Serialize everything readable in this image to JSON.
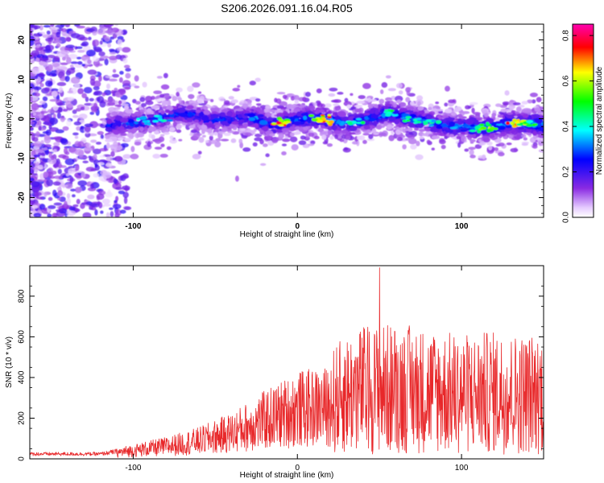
{
  "title": "S206.2026.091.16.04.R05",
  "chart_data": [
    {
      "type": "heatmap",
      "name": "spectrogram",
      "xlabel": "Height of straight line (km)",
      "ylabel": "Frequency (Hz)",
      "xlim": [
        -163,
        150
      ],
      "ylim": [
        -25,
        24
      ],
      "xticks": [
        -100,
        0,
        100
      ],
      "yticks": [
        -20,
        -10,
        0,
        10,
        20
      ],
      "ridge": [
        [
          -110,
          -1.5
        ],
        [
          -90,
          -0.5
        ],
        [
          -70,
          1.5
        ],
        [
          -50,
          -0.5
        ],
        [
          -30,
          0.5
        ],
        [
          -15,
          -1.5
        ],
        [
          0,
          0
        ],
        [
          15,
          0
        ],
        [
          30,
          -1.5
        ],
        [
          45,
          0
        ],
        [
          55,
          1.5
        ],
        [
          70,
          0
        ],
        [
          85,
          -1.5
        ],
        [
          100,
          -2
        ],
        [
          115,
          -2.5
        ],
        [
          130,
          -1
        ],
        [
          150,
          -1.5
        ]
      ],
      "colorbar": {
        "label": "Normalized spectral amplitude",
        "range": [
          0.0,
          0.85
        ],
        "ticks": [
          0.0,
          0.2,
          0.4,
          0.6,
          0.8
        ]
      }
    },
    {
      "type": "line",
      "name": "snr",
      "xlabel": "Height of straight line (km)",
      "ylabel": "SNR (10 * v/v)",
      "xlim": [
        -163,
        150
      ],
      "ylim": [
        0,
        950
      ],
      "xticks": [
        -100,
        0,
        100
      ],
      "yticks": [
        0,
        200,
        400,
        600,
        800
      ],
      "color": "#e8282a",
      "envelope": [
        [
          -163,
          30
        ],
        [
          -120,
          30
        ],
        [
          -100,
          60
        ],
        [
          -80,
          90
        ],
        [
          -60,
          130
        ],
        [
          -40,
          190
        ],
        [
          -20,
          280
        ],
        [
          0,
          360
        ],
        [
          20,
          380
        ],
        [
          30,
          440
        ],
        [
          40,
          470
        ],
        [
          60,
          480
        ],
        [
          80,
          460
        ],
        [
          100,
          440
        ],
        [
          120,
          450
        ],
        [
          140,
          440
        ],
        [
          150,
          450
        ]
      ],
      "peak": [
        50,
        940
      ]
    }
  ]
}
